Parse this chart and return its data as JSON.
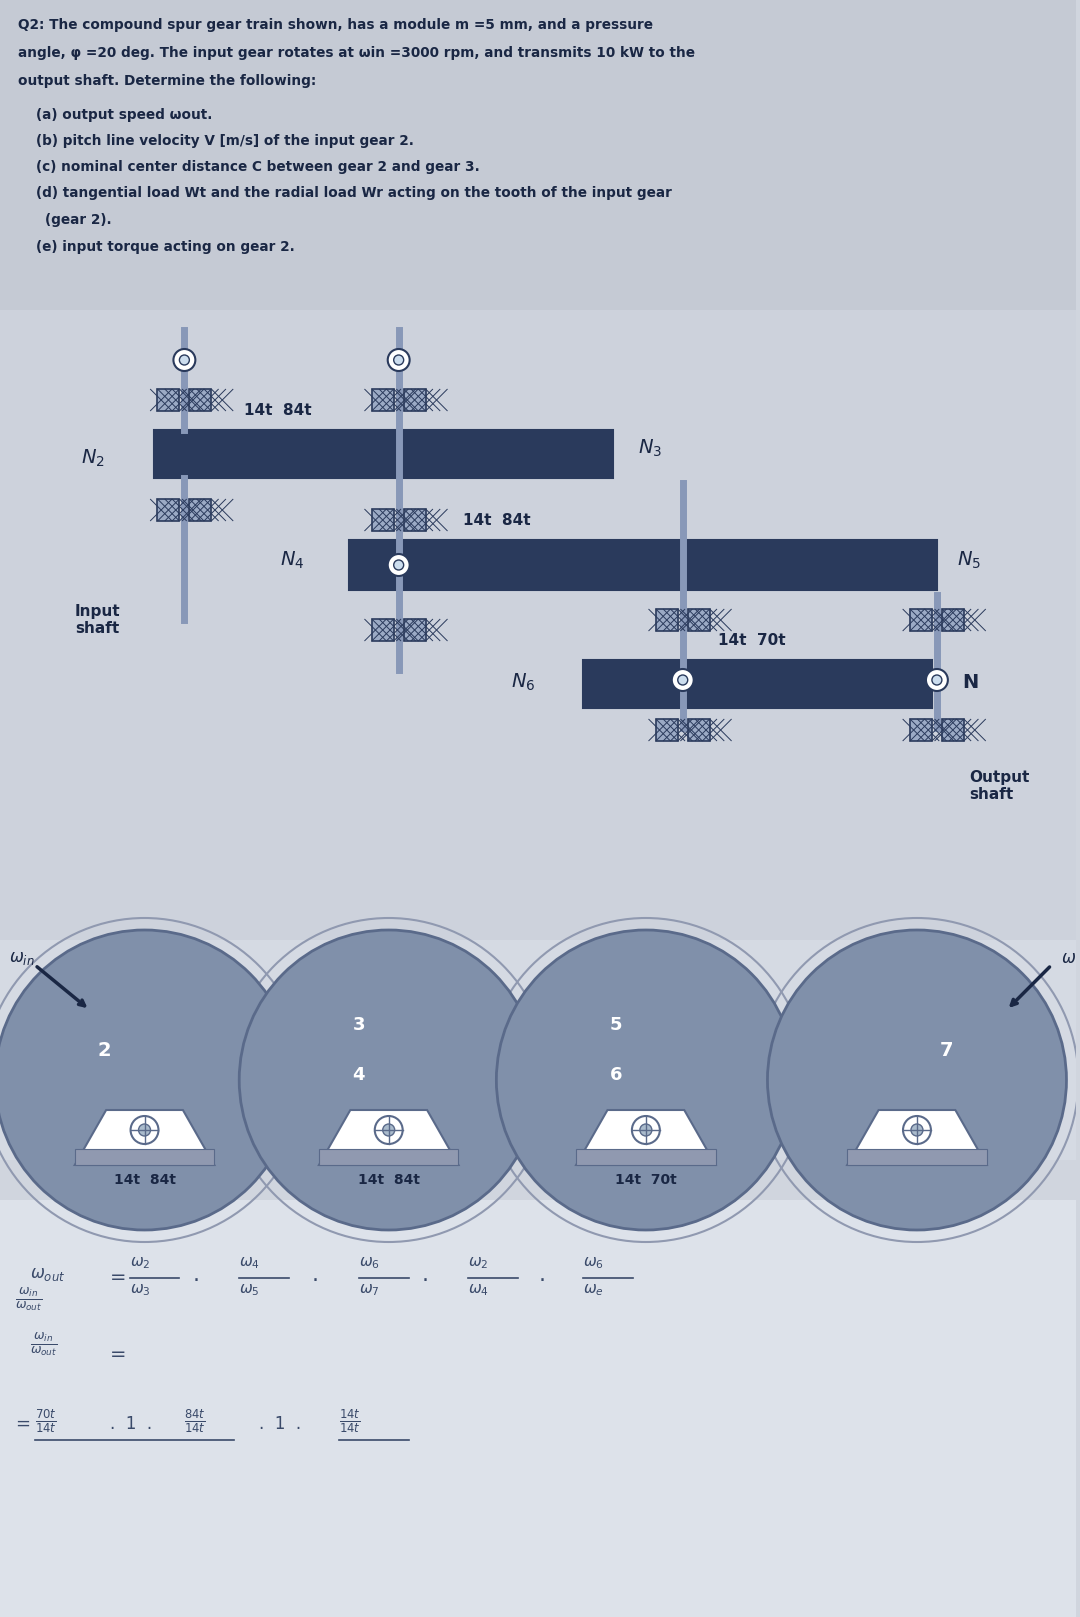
{
  "bg_color_top": "#b8bfc8",
  "bg_color_diagram": "#d0d5de",
  "bg_color_circle": "#e8eaf0",
  "text_color": "#1a2744",
  "gear_dark": "#2a3a5c",
  "gear_mid": "#6a7a9c",
  "gear_light": "#9baac5",
  "shaft_color": "#8898b8",
  "bear_fill": "#9baac5",
  "bear_hatch": "#2a3a5c",
  "circle_fill": "#8090b0",
  "circle_fill2": "#a0b0c8",
  "white": "#ffffff",
  "title_lines": [
    "Q2: The compound spur gear train shown, has a module m =5 mm, and a pressure",
    "angle, φ =20 deg. The input gear rotates at ωin =3000 rpm, and transmits 10 kW to the",
    "output shaft. Determine the following:"
  ],
  "items": [
    "(a) output speed ωout.",
    "(b) pitch line velocity V [m/s] of the input gear 2.",
    "(c) nominal center distance C between gear 2 and gear 3.",
    "(d) tangential load Wt and the radial load Wr acting on the tooth of the input gear",
    "    (gear 2).",
    "(e) input torque acting on gear 2."
  ]
}
